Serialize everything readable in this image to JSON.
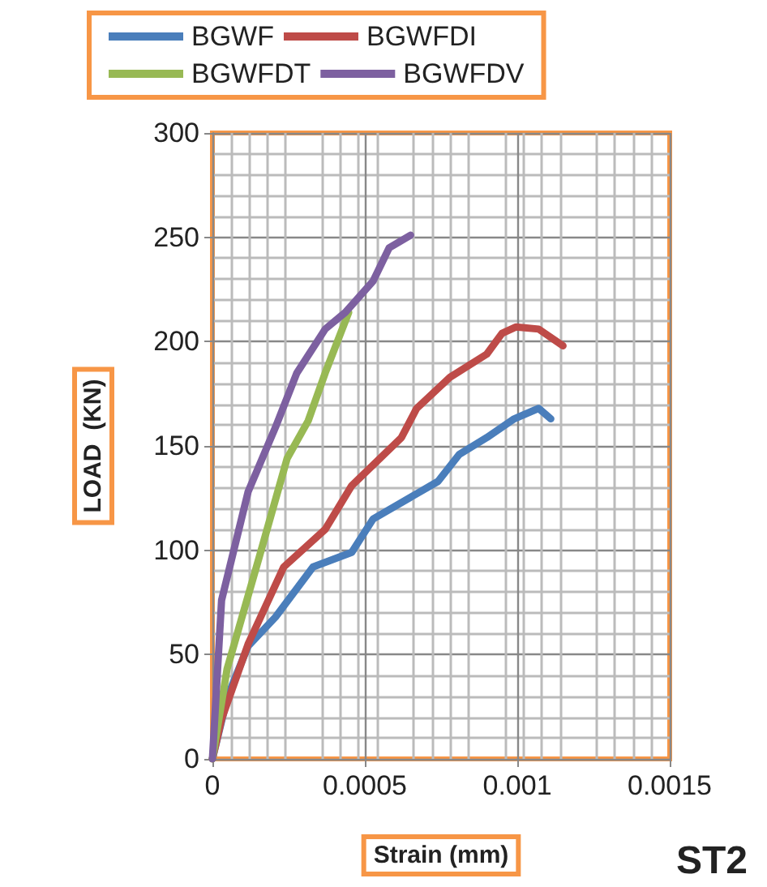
{
  "chart_data": {
    "type": "line",
    "xlabel": "Strain (mm)",
    "ylabel": "LOAD  (KN)",
    "annotations": [
      "ST2"
    ],
    "xlim": [
      0,
      0.0015
    ],
    "xticks": [
      0,
      0.0005,
      0.001,
      0.0015
    ],
    "ylim": [
      0,
      300
    ],
    "yticks": [
      0,
      50,
      100,
      150,
      200,
      250,
      300
    ],
    "grid": true,
    "legend": "top",
    "marker": "none",
    "line_style": "solid",
    "series": [
      {
        "name": "BGWF",
        "color": "#4a7ebb",
        "x": [
          0,
          5e-05,
          0.000117,
          0.000207,
          0.00033,
          0.000457,
          0.000527,
          0.00074,
          0.00081,
          0.0009,
          0.00099,
          0.00107,
          0.00111
        ],
        "values": [
          0,
          30,
          54,
          68,
          92,
          99,
          115,
          133,
          146,
          154,
          163,
          168,
          163
        ]
      },
      {
        "name": "BGWFDI",
        "color": "#be4b48",
        "x": [
          0,
          3e-05,
          0.000117,
          0.000234,
          0.00037,
          0.000457,
          0.00062,
          0.00067,
          0.00078,
          0.0009,
          0.00095,
          0.000995,
          0.00107,
          0.00115
        ],
        "values": [
          0,
          19,
          55,
          92,
          110,
          131,
          154,
          168,
          183,
          194,
          204,
          207,
          206,
          198
        ]
      },
      {
        "name": "BGWFDT",
        "color": "#98b954",
        "x": [
          0,
          4.8e-05,
          0.000154,
          0.000245,
          0.000314,
          0.00037,
          0.000447
        ],
        "values": [
          0,
          43,
          97,
          144,
          162,
          185,
          214
        ]
      },
      {
        "name": "BGWFDV",
        "color": "#7d60a0",
        "x": [
          0,
          3e-05,
          0.000117,
          0.000207,
          0.000277,
          0.00037,
          0.000436,
          0.000527,
          0.00058,
          0.00065
        ],
        "values": [
          0,
          76,
          128,
          159,
          185,
          206,
          214,
          229,
          245,
          251
        ]
      }
    ]
  }
}
